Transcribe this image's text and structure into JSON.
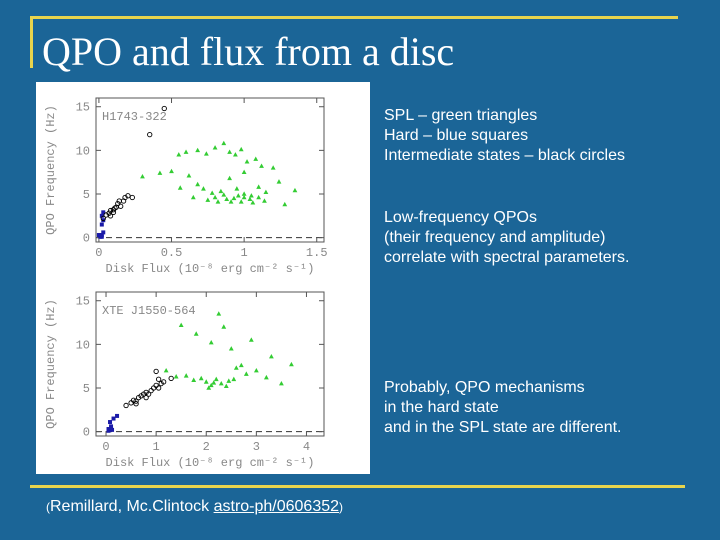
{
  "slide": {
    "title": "QPO and flux from a disc",
    "legend_lines": [
      "SPL – green triangles",
      "Hard – blue squares",
      "Intermediate states – black circles"
    ],
    "lowfreq_lines": [
      "Low-frequency QPOs",
      "(their frequency and amplitude)",
      "correlate with spectral parameters."
    ],
    "probably_lines": [
      "Probably, QPO mechanisms",
      "in the hard state",
      "and in the SPL state are different."
    ],
    "citation": {
      "open": "(",
      "text": "Remillard, Mc.Clintock ",
      "link": "astro-ph/0606352",
      "close": ")"
    }
  },
  "colors": {
    "background": "#1b6597",
    "frame": "#e8d44d",
    "spl": "#33cc33",
    "hard": "#1a1aa8",
    "intermediate": "#000000"
  },
  "chart_data": [
    {
      "type": "scatter",
      "annotation": "H1743-322",
      "xlabel": "Disk Flux (10⁻⁸ erg cm⁻² s⁻¹)",
      "ylabel": "QPO Frequency (Hz)",
      "xlim": [
        -0.02,
        1.55
      ],
      "ylim": [
        -0.5,
        16
      ],
      "xticks": [
        0,
        0.5,
        1,
        1.5
      ],
      "xtick_labels": [
        "0",
        "0.5",
        "1",
        "1.5"
      ],
      "yticks": [
        0,
        5,
        10,
        15
      ],
      "ytick_labels": [
        "0",
        "5",
        "10",
        "15"
      ],
      "series": [
        {
          "kind": "spl",
          "points": [
            [
              0.55,
              9.5
            ],
            [
              0.6,
              9.8
            ],
            [
              0.68,
              10.0
            ],
            [
              0.74,
              9.6
            ],
            [
              0.8,
              10.3
            ],
            [
              0.86,
              10.8
            ],
            [
              0.9,
              9.8
            ],
            [
              0.94,
              9.5
            ],
            [
              0.98,
              10.1
            ],
            [
              1.02,
              8.7
            ],
            [
              1.08,
              9.0
            ],
            [
              1.12,
              8.2
            ],
            [
              0.42,
              7.4
            ],
            [
              0.5,
              7.6
            ],
            [
              0.56,
              5.7
            ],
            [
              0.62,
              7.1
            ],
            [
              0.68,
              6.1
            ],
            [
              0.72,
              5.6
            ],
            [
              0.78,
              5.1
            ],
            [
              0.84,
              5.3
            ],
            [
              0.9,
              6.8
            ],
            [
              0.95,
              5.6
            ],
            [
              1.0,
              4.6
            ],
            [
              1.05,
              4.8
            ],
            [
              1.1,
              5.8
            ],
            [
              1.15,
              5.2
            ],
            [
              1.24,
              6.4
            ],
            [
              1.28,
              3.8
            ],
            [
              1.35,
              5.4
            ],
            [
              0.65,
              4.6
            ],
            [
              0.75,
              4.3
            ],
            [
              0.8,
              4.6
            ],
            [
              0.82,
              4.1
            ],
            [
              0.86,
              4.9
            ],
            [
              0.88,
              4.4
            ],
            [
              0.91,
              4.1
            ],
            [
              0.93,
              4.5
            ],
            [
              0.96,
              4.8
            ],
            [
              0.98,
              4.1
            ],
            [
              1.0,
              5.0
            ],
            [
              1.04,
              4.4
            ],
            [
              1.06,
              4.0
            ],
            [
              1.1,
              4.6
            ],
            [
              1.14,
              4.2
            ],
            [
              1.0,
              7.5
            ],
            [
              1.2,
              8.0
            ],
            [
              0.3,
              7.0
            ]
          ]
        },
        {
          "kind": "hard",
          "points": [
            [
              0.01,
              0.2
            ],
            [
              0.02,
              0.3
            ],
            [
              0.03,
              0.6
            ],
            [
              0.02,
              1.5
            ],
            [
              0.03,
              2.0
            ],
            [
              0.02,
              2.5
            ],
            [
              0.03,
              2.9
            ],
            [
              0.01,
              0.1
            ],
            [
              0.02,
              0.1
            ],
            [
              0.0,
              0.3
            ]
          ]
        },
        {
          "kind": "intermediate",
          "points": [
            [
              0.03,
              2.2
            ],
            [
              0.05,
              2.6
            ],
            [
              0.07,
              2.8
            ],
            [
              0.08,
              3.1
            ],
            [
              0.1,
              3.2
            ],
            [
              0.12,
              3.5
            ],
            [
              0.13,
              3.9
            ],
            [
              0.15,
              3.6
            ],
            [
              0.17,
              4.2
            ],
            [
              0.18,
              4.6
            ],
            [
              0.2,
              4.8
            ],
            [
              0.23,
              4.6
            ],
            [
              0.1,
              2.9
            ],
            [
              0.08,
              2.5
            ],
            [
              0.11,
              3.4
            ],
            [
              0.14,
              4.2
            ],
            [
              0.35,
              11.8
            ],
            [
              0.45,
              14.8
            ]
          ]
        }
      ]
    },
    {
      "type": "scatter",
      "annotation": "XTE J1550-564",
      "xlabel": "Disk Flux (10⁻⁸ erg cm⁻² s⁻¹)",
      "ylabel": "QPO Frequency (Hz)",
      "xlim": [
        -0.2,
        4.35
      ],
      "ylim": [
        -0.5,
        16
      ],
      "xticks": [
        0,
        1,
        2,
        3,
        4
      ],
      "xtick_labels": [
        "0",
        "1",
        "2",
        "3",
        "4"
      ],
      "yticks": [
        0,
        5,
        10,
        15
      ],
      "ytick_labels": [
        "0",
        "5",
        "10",
        "15"
      ],
      "series": [
        {
          "kind": "spl",
          "points": [
            [
              1.5,
              12.2
            ],
            [
              1.8,
              11.2
            ],
            [
              2.25,
              13.5
            ],
            [
              2.35,
              12.0
            ],
            [
              2.1,
              10.2
            ],
            [
              2.5,
              9.5
            ],
            [
              2.9,
              10.5
            ],
            [
              3.3,
              8.6
            ],
            [
              3.7,
              7.7
            ],
            [
              1.2,
              7.0
            ],
            [
              1.6,
              6.4
            ],
            [
              1.75,
              5.9
            ],
            [
              1.9,
              6.1
            ],
            [
              2.0,
              5.7
            ],
            [
              2.1,
              5.3
            ],
            [
              2.2,
              6.0
            ],
            [
              2.3,
              5.5
            ],
            [
              2.45,
              5.8
            ],
            [
              2.6,
              7.3
            ],
            [
              2.8,
              6.6
            ],
            [
              3.2,
              6.2
            ],
            [
              3.5,
              5.5
            ],
            [
              2.05,
              5.0
            ],
            [
              2.15,
              5.6
            ],
            [
              2.4,
              5.2
            ],
            [
              2.55,
              6.0
            ],
            [
              1.4,
              6.3
            ],
            [
              3.0,
              7.0
            ],
            [
              2.7,
              7.6
            ]
          ]
        },
        {
          "kind": "hard",
          "points": [
            [
              0.05,
              0.3
            ],
            [
              0.1,
              0.6
            ],
            [
              0.08,
              1.1
            ],
            [
              0.15,
              1.5
            ],
            [
              0.22,
              1.8
            ],
            [
              0.05,
              0.1
            ],
            [
              0.12,
              0.2
            ]
          ]
        },
        {
          "kind": "intermediate",
          "points": [
            [
              0.4,
              3.0
            ],
            [
              0.5,
              3.3
            ],
            [
              0.55,
              3.6
            ],
            [
              0.6,
              3.5
            ],
            [
              0.65,
              3.9
            ],
            [
              0.7,
              4.1
            ],
            [
              0.75,
              4.3
            ],
            [
              0.8,
              4.5
            ],
            [
              0.85,
              4.3
            ],
            [
              0.9,
              4.7
            ],
            [
              0.95,
              5.0
            ],
            [
              1.0,
              5.3
            ],
            [
              1.05,
              5.0
            ],
            [
              1.1,
              5.5
            ],
            [
              1.15,
              5.7
            ],
            [
              1.3,
              6.1
            ],
            [
              1.0,
              6.9
            ],
            [
              1.05,
              6.0
            ],
            [
              0.6,
              3.2
            ],
            [
              0.8,
              3.9
            ]
          ]
        }
      ]
    }
  ]
}
